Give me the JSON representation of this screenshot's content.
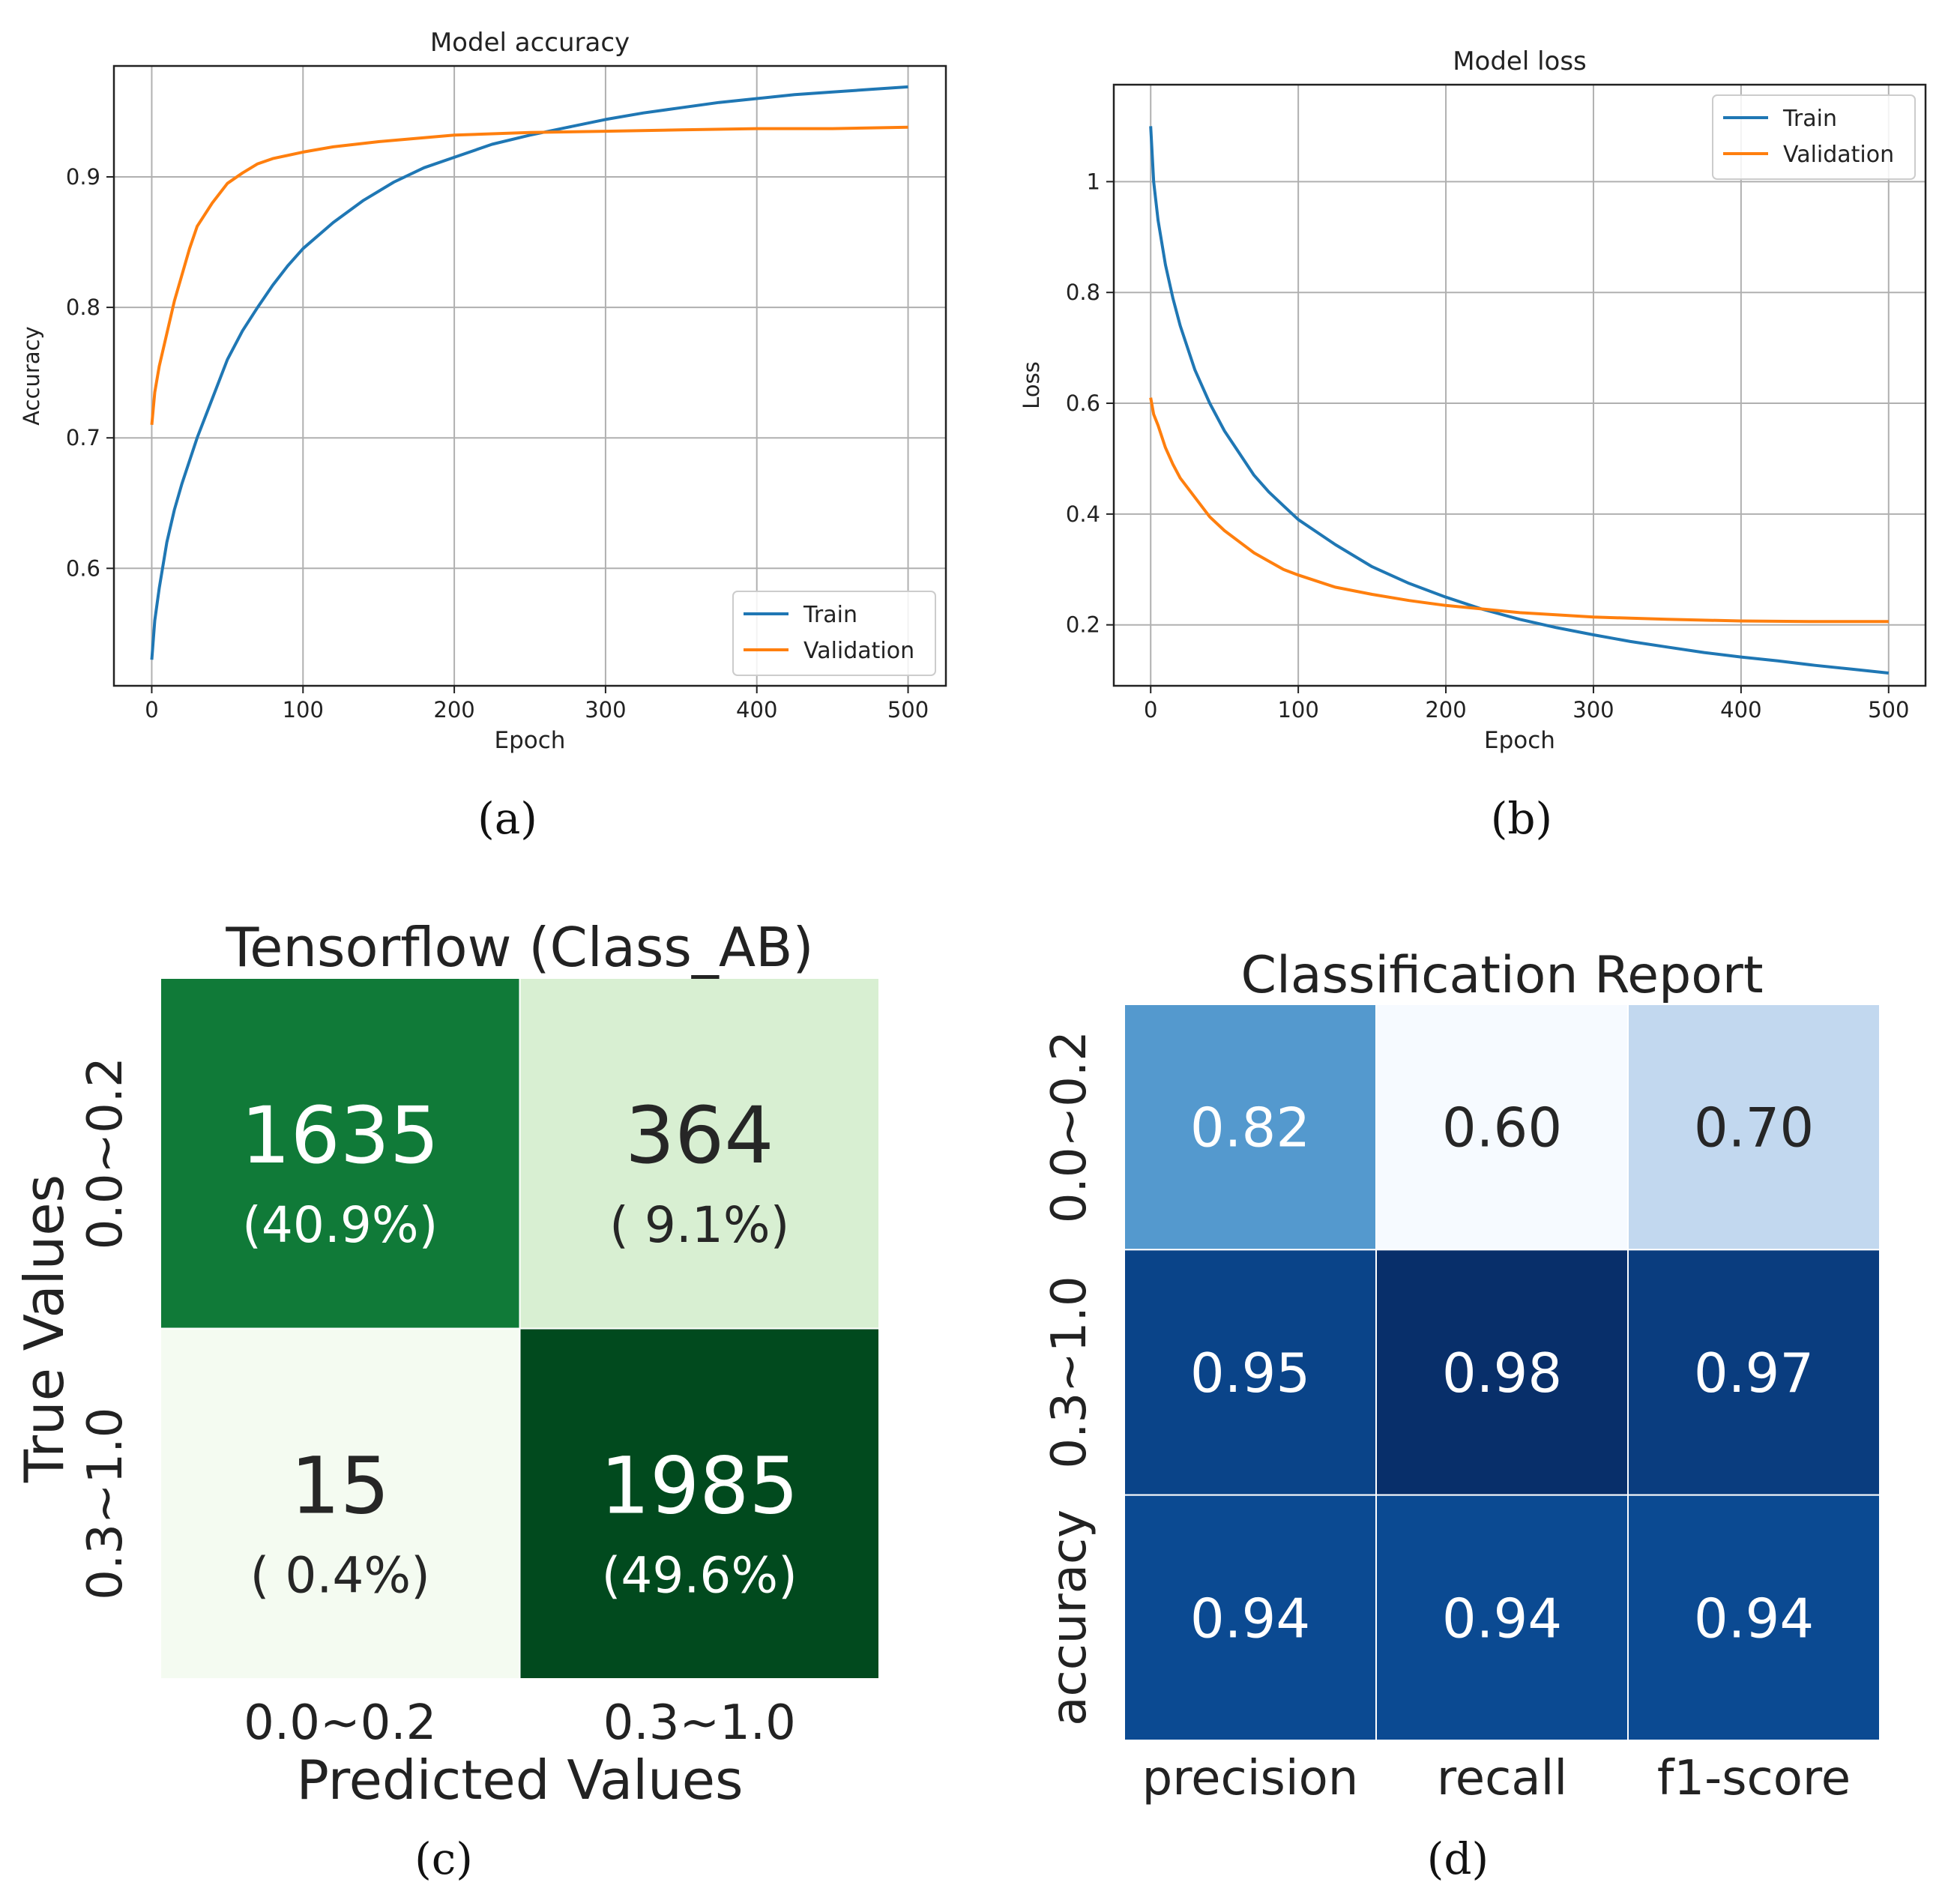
{
  "panel_labels": [
    "(a)",
    "(b)",
    "(c)",
    "(d)"
  ],
  "chart_data": [
    {
      "id": "a",
      "type": "line",
      "title": "Model accuracy",
      "xlabel": "Epoch",
      "ylabel": "Accuracy",
      "xlim": [
        -25,
        525
      ],
      "ylim": [
        0.51,
        0.985
      ],
      "xticks": [
        0,
        100,
        200,
        300,
        400,
        500
      ],
      "yticks": [
        0.6,
        0.7,
        0.8,
        0.9
      ],
      "grid": true,
      "legend": "bottom-right",
      "series": [
        {
          "name": "Train",
          "color": "#1f77b4",
          "x": [
            0,
            2,
            5,
            10,
            15,
            20,
            30,
            40,
            50,
            60,
            70,
            80,
            90,
            100,
            120,
            140,
            160,
            180,
            200,
            225,
            250,
            275,
            300,
            325,
            350,
            375,
            400,
            425,
            450,
            475,
            500
          ],
          "y": [
            0.53,
            0.56,
            0.585,
            0.62,
            0.645,
            0.665,
            0.7,
            0.73,
            0.76,
            0.782,
            0.8,
            0.817,
            0.832,
            0.845,
            0.865,
            0.882,
            0.896,
            0.907,
            0.915,
            0.925,
            0.932,
            0.938,
            0.944,
            0.949,
            0.953,
            0.957,
            0.96,
            0.963,
            0.965,
            0.967,
            0.969
          ]
        },
        {
          "name": "Validation",
          "color": "#ff7f0e",
          "x": [
            0,
            2,
            5,
            10,
            15,
            20,
            25,
            30,
            40,
            50,
            60,
            70,
            80,
            100,
            120,
            150,
            180,
            200,
            250,
            300,
            350,
            400,
            450,
            500
          ],
          "y": [
            0.71,
            0.735,
            0.755,
            0.78,
            0.805,
            0.825,
            0.845,
            0.862,
            0.88,
            0.895,
            0.903,
            0.91,
            0.914,
            0.919,
            0.923,
            0.927,
            0.93,
            0.932,
            0.934,
            0.935,
            0.936,
            0.937,
            0.937,
            0.938
          ]
        }
      ]
    },
    {
      "id": "b",
      "type": "line",
      "title": "Model loss",
      "xlabel": "Epoch",
      "ylabel": "Loss",
      "xlim": [
        -25,
        525
      ],
      "ylim": [
        0.09,
        1.175
      ],
      "xticks": [
        0,
        100,
        200,
        300,
        400,
        500
      ],
      "yticks": [
        0.2,
        0.4,
        0.6,
        0.8,
        1.0
      ],
      "grid": true,
      "legend": "top-right",
      "series": [
        {
          "name": "Train",
          "color": "#1f77b4",
          "x": [
            0,
            2,
            5,
            10,
            15,
            20,
            30,
            40,
            50,
            60,
            70,
            80,
            90,
            100,
            125,
            150,
            175,
            200,
            225,
            250,
            275,
            300,
            325,
            350,
            375,
            400,
            425,
            450,
            475,
            500
          ],
          "y": [
            1.1,
            1.0,
            0.93,
            0.85,
            0.79,
            0.74,
            0.66,
            0.6,
            0.55,
            0.51,
            0.47,
            0.44,
            0.415,
            0.39,
            0.345,
            0.305,
            0.275,
            0.25,
            0.228,
            0.21,
            0.195,
            0.182,
            0.17,
            0.16,
            0.15,
            0.142,
            0.135,
            0.127,
            0.12,
            0.113
          ]
        },
        {
          "name": "Validation",
          "color": "#ff7f0e",
          "x": [
            0,
            2,
            5,
            10,
            15,
            20,
            30,
            40,
            50,
            60,
            70,
            80,
            90,
            100,
            125,
            150,
            175,
            200,
            250,
            300,
            350,
            400,
            450,
            500
          ],
          "y": [
            0.61,
            0.58,
            0.56,
            0.52,
            0.49,
            0.465,
            0.43,
            0.395,
            0.37,
            0.35,
            0.33,
            0.315,
            0.3,
            0.29,
            0.268,
            0.255,
            0.244,
            0.235,
            0.222,
            0.214,
            0.21,
            0.207,
            0.206,
            0.206
          ]
        }
      ]
    },
    {
      "id": "c",
      "type": "heatmap",
      "title": "Tensorflow (Class_AB)",
      "xlabel": "Predicted Values",
      "ylabel": "True Values",
      "x_categories": [
        "0.0~0.2",
        "0.3~1.0"
      ],
      "y_categories": [
        "0.0~0.2",
        "0.3~1.0"
      ],
      "values": [
        [
          1635,
          364
        ],
        [
          15,
          1985
        ]
      ],
      "percents": [
        [
          "(40.9%)",
          "( 9.1%)"
        ],
        [
          "( 0.4%)",
          "(49.6%)"
        ]
      ],
      "colors": [
        [
          "#107a38",
          "#d8efd2"
        ],
        [
          "#f4fbf1",
          "#014a1e"
        ]
      ],
      "text_colors": [
        [
          "#ffffff",
          "#262626"
        ],
        [
          "#262626",
          "#ffffff"
        ]
      ]
    },
    {
      "id": "d",
      "type": "heatmap",
      "title": "Classification Report",
      "x_categories": [
        "precision",
        "recall",
        "f1-score"
      ],
      "y_categories": [
        "0.0~0.2",
        "0.3~1.0",
        "accuracy"
      ],
      "values": [
        [
          "0.82",
          "0.60",
          "0.70"
        ],
        [
          "0.95",
          "0.98",
          "0.97"
        ],
        [
          "0.94",
          "0.94",
          "0.94"
        ]
      ],
      "colors": [
        [
          "#5499ce",
          "#f6faff",
          "#c2d8ef"
        ],
        [
          "#0a4489",
          "#082f6a",
          "#0a3d7f"
        ],
        [
          "#0b4a92",
          "#0b4a92",
          "#0b4a92"
        ]
      ],
      "text_colors": [
        [
          "#ffffff",
          "#262626",
          "#262626"
        ],
        [
          "#ffffff",
          "#ffffff",
          "#ffffff"
        ],
        [
          "#ffffff",
          "#ffffff",
          "#ffffff"
        ]
      ]
    }
  ]
}
